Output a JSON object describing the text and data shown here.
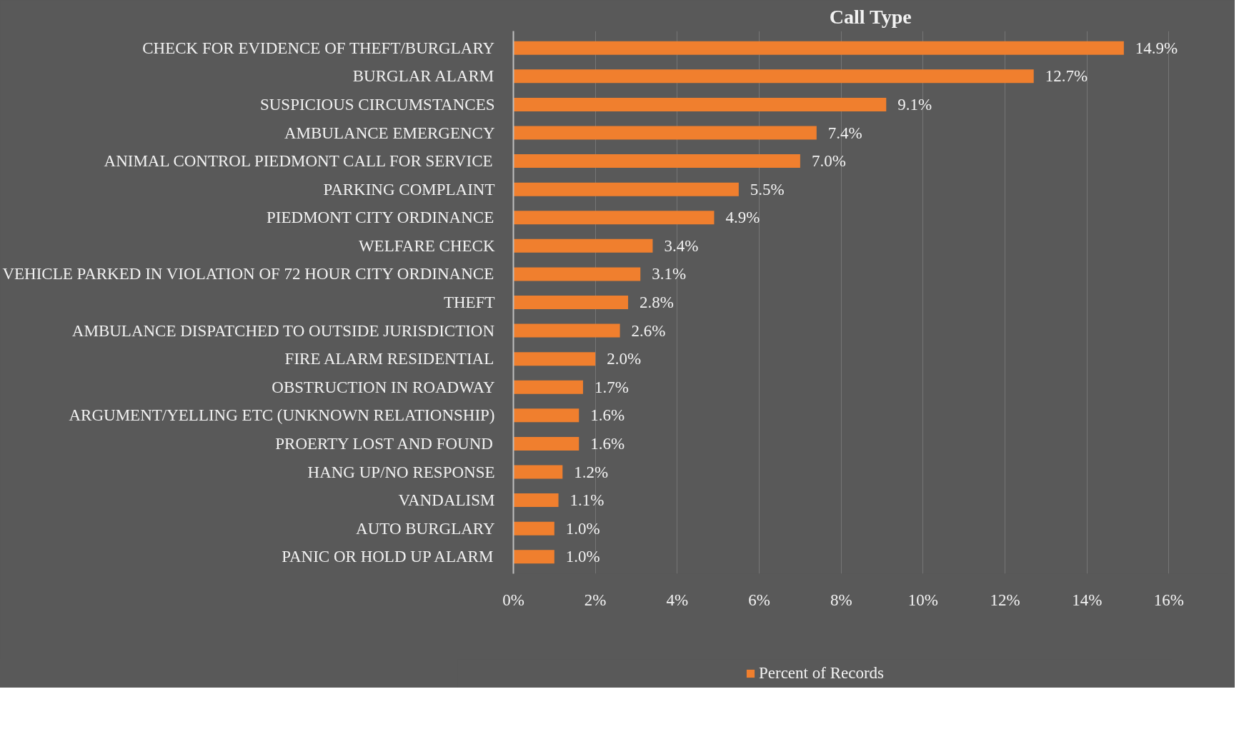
{
  "chart_data": {
    "type": "bar",
    "orientation": "horizontal",
    "title": "Call Type",
    "categories": [
      "CHECK FOR EVIDENCE OF THEFT/BURGLARY",
      "BURGLAR ALARM",
      "SUSPICIOUS CIRCUMSTANCES",
      "AMBULANCE EMERGENCY",
      "ANIMAL CONTROL PIEDMONT CALL FOR SERVICE",
      "PARKING COMPLAINT",
      "PIEDMONT CITY ORDINANCE",
      "WELFARE CHECK",
      "VEHICLE PARKED IN VIOLATION OF 72 HOUR CITY ORDINANCE",
      "THEFT",
      "AMBULANCE DISPATCHED TO OUTSIDE JURISDICTION",
      "FIRE ALARM RESIDENTIAL",
      "OBSTRUCTION IN ROADWAY",
      "ARGUMENT/YELLING ETC (UNKNOWN RELATIONSHIP)",
      "PROERTY LOST AND FOUND",
      "HANG UP/NO RESPONSE",
      "VANDALISM",
      "AUTO BURGLARY",
      "PANIC OR HOLD UP ALARM"
    ],
    "series": [
      {
        "name": "Percent of Records",
        "color": "#f07f2e",
        "values": [
          14.9,
          12.7,
          9.1,
          7.4,
          7.0,
          5.5,
          4.9,
          3.4,
          3.1,
          2.8,
          2.6,
          2.0,
          1.7,
          1.6,
          1.6,
          1.2,
          1.1,
          1.0,
          1.0
        ],
        "value_labels": [
          "14.9%",
          "12.7%",
          "9.1%",
          "7.4%",
          "7.0%",
          "5.5%",
          "4.9%",
          "3.4%",
          "3.1%",
          "2.8%",
          "2.6%",
          "2.0%",
          "1.7%",
          "1.6%",
          "1.6%",
          "1.2%",
          "1.1%",
          "1.0%",
          "1.0%"
        ]
      }
    ],
    "xlim": [
      0,
      16
    ],
    "xticks": [
      {
        "value": 0,
        "label": "0%"
      },
      {
        "value": 2,
        "label": "2%"
      },
      {
        "value": 4,
        "label": "4%"
      },
      {
        "value": 6,
        "label": "6%"
      },
      {
        "value": 8,
        "label": "8%"
      },
      {
        "value": 10,
        "label": "10%"
      },
      {
        "value": 12,
        "label": "12%"
      },
      {
        "value": 14,
        "label": "14%"
      },
      {
        "value": 16,
        "label": "16%"
      }
    ],
    "grid": "x",
    "legend": "bottom"
  }
}
